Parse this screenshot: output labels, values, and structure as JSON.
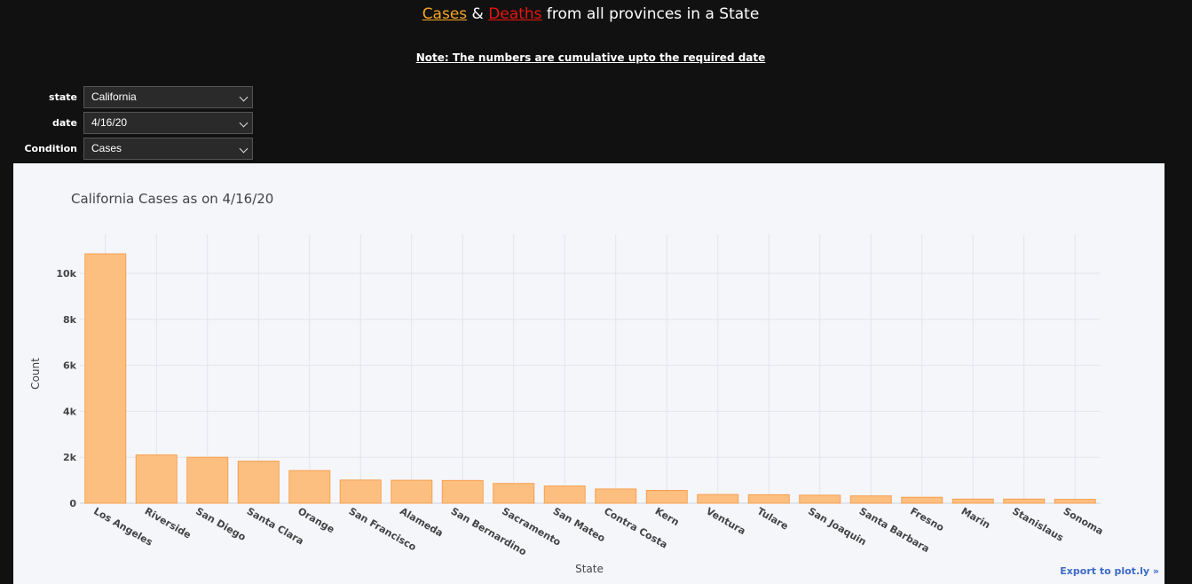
{
  "header": {
    "cases_word": "Cases",
    "amp": " & ",
    "deaths_word": "Deaths",
    "rest": " from all provinces in a State",
    "note": "Note: The numbers are cumulative upto the required date"
  },
  "controls": {
    "state": {
      "label": "state",
      "value": "California"
    },
    "date": {
      "label": "date",
      "value": "4/16/20"
    },
    "condition": {
      "label": "Condition",
      "value": "Cases"
    }
  },
  "export_label": "Export to plot.ly »",
  "colors": {
    "bar_fill": "#fdbf80",
    "bar_stroke": "#f5a050",
    "grid": "#e3e4ea",
    "text": "#444444"
  },
  "chart_data": {
    "type": "bar",
    "title": "California Cases as on 4/16/20",
    "xlabel": "State",
    "ylabel": "Count",
    "ylim": [
      0,
      11700
    ],
    "yticks": [
      0,
      2000,
      4000,
      6000,
      8000,
      10000
    ],
    "ytick_labels": [
      "0",
      "2k",
      "4k",
      "6k",
      "8k",
      "10k"
    ],
    "grid": true,
    "categories": [
      "Los Angeles",
      "Riverside",
      "San Diego",
      "Santa Clara",
      "Orange",
      "San Francisco",
      "Alameda",
      "San Bernardino",
      "Sacramento",
      "San Mateo",
      "Contra Costa",
      "Kern",
      "Ventura",
      "Tulare",
      "San Joaquin",
      "Santa Barbara",
      "Fresno",
      "Marin",
      "Stanislaus",
      "Sonoma"
    ],
    "values": [
      10850,
      2100,
      2000,
      1830,
      1420,
      1010,
      1000,
      990,
      860,
      750,
      620,
      560,
      380,
      370,
      350,
      320,
      260,
      180,
      180,
      170
    ]
  }
}
